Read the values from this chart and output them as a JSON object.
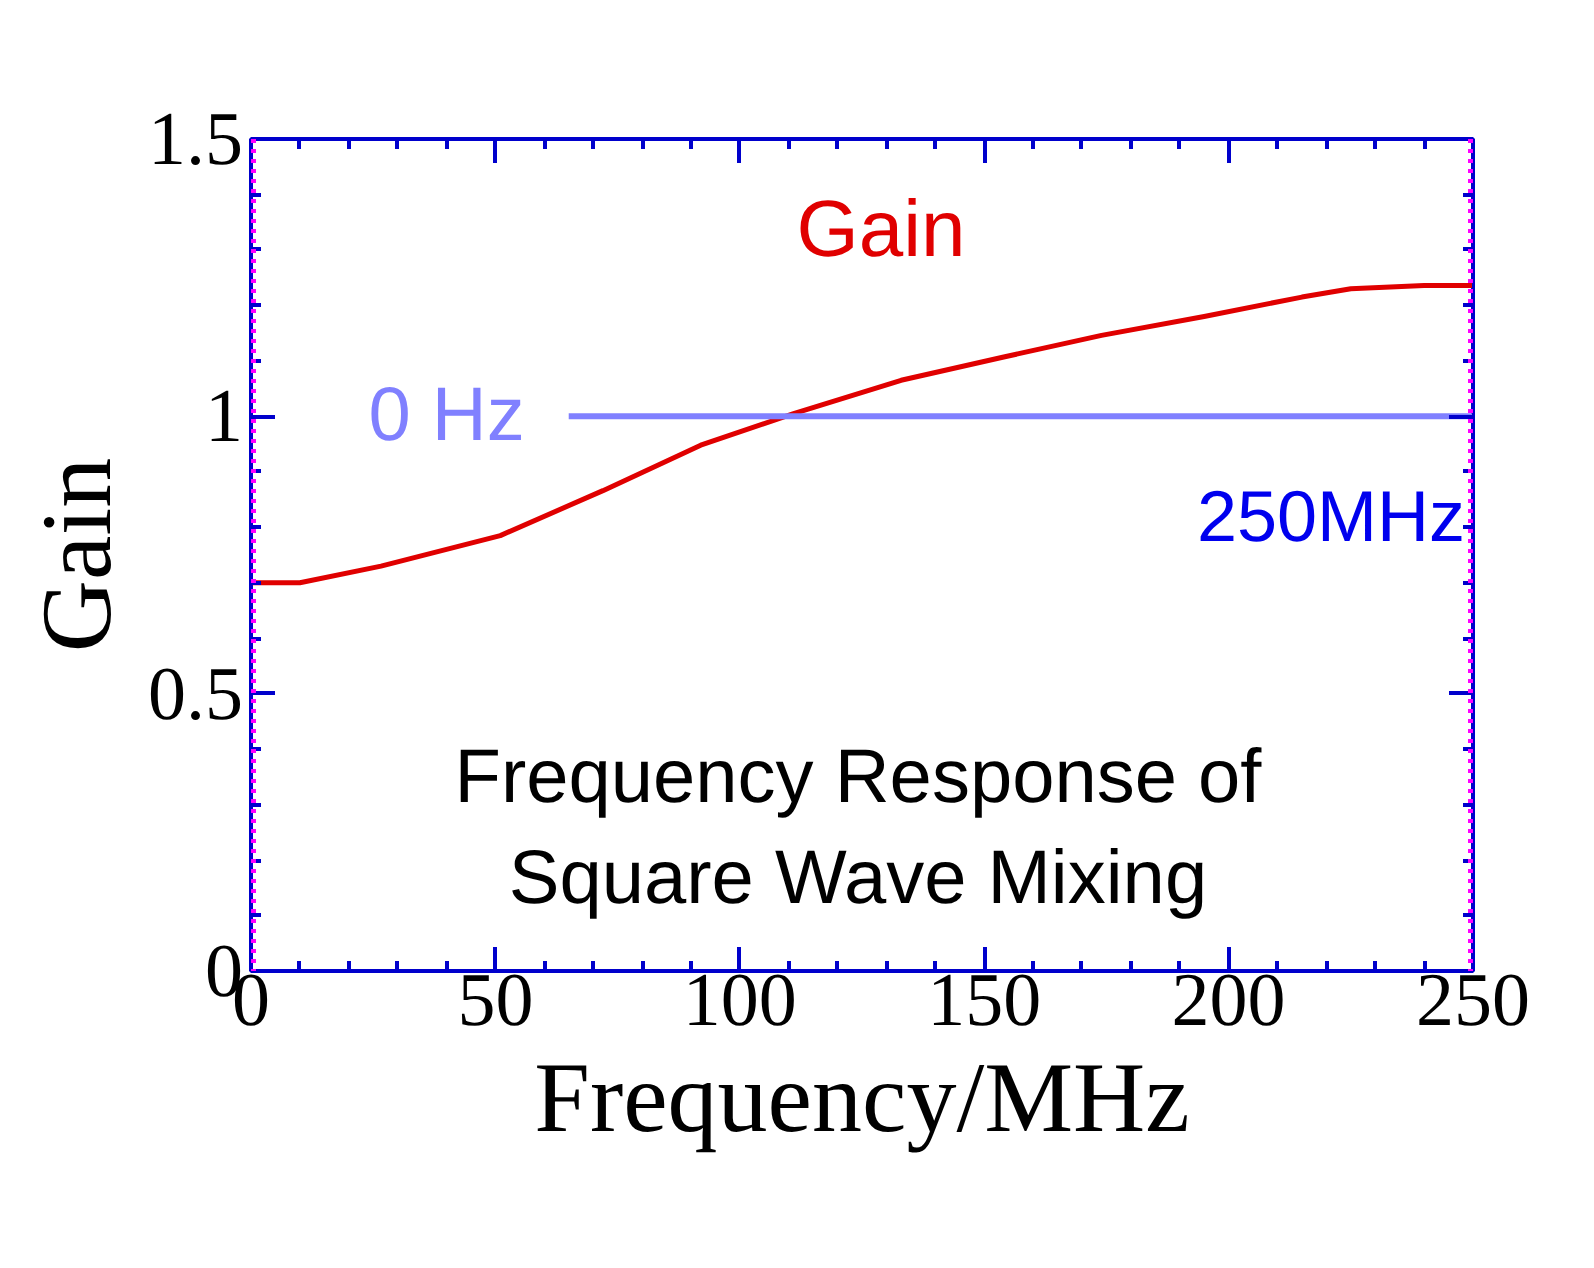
{
  "chart_data": {
    "type": "line",
    "xlabel": "Frequency/MHz",
    "ylabel": "Gain",
    "xlim": [
      0,
      250
    ],
    "ylim": [
      0,
      1.5
    ],
    "xticks": [
      0,
      50,
      100,
      150,
      200,
      250
    ],
    "yticks": [
      0,
      0.5,
      1,
      1.5
    ],
    "grid": false,
    "marker": "none",
    "line_style": "solid",
    "series": [
      {
        "name": "Gain",
        "color": "#e00000",
        "x": [
          0,
          10,
          26.6,
          51,
          72,
          92,
          111,
          133,
          154,
          174,
          195,
          215,
          225,
          240,
          250
        ],
        "values": [
          0.7,
          0.7,
          0.73,
          0.785,
          0.866,
          0.948,
          1.005,
          1.065,
          1.107,
          1.146,
          1.18,
          1.215,
          1.23,
          1.236,
          1.236
        ]
      },
      {
        "name": "0 Hz",
        "color": "#8080ff",
        "x": [
          65,
          250
        ],
        "values": [
          1,
          1
        ]
      }
    ],
    "ref_lines": [
      {
        "axis": "x",
        "value": 0,
        "color": "#ff00ff",
        "line_style": "dotted"
      },
      {
        "axis": "x",
        "value": 250,
        "color": "#ff00ff",
        "line_style": "dotted"
      }
    ],
    "annotations": [
      "250MHz",
      "Frequency Response of\nSquare Wave Mixing"
    ]
  }
}
